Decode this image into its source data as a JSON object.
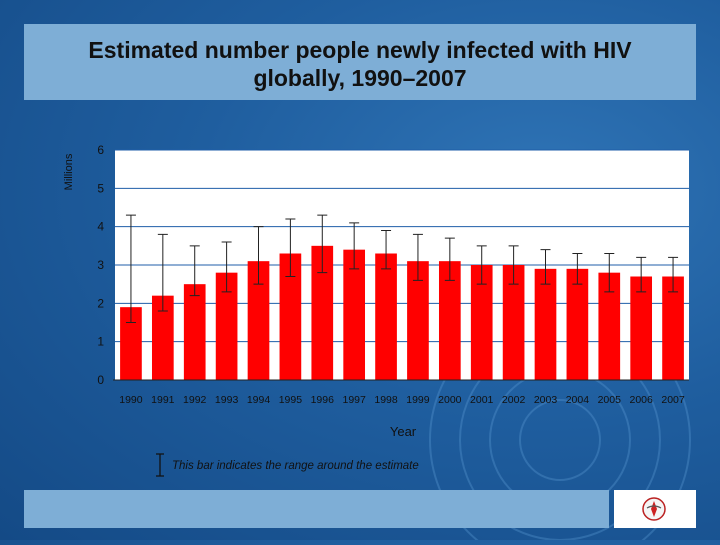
{
  "chart_data": {
    "type": "bar",
    "title": "Estimated number people newly infected with HIV globally, 1990–2007",
    "title_lines": [
      "Estimated number people newly infected with HIV",
      "globally, 1990–2007"
    ],
    "xlabel": "Year",
    "ylabel": "Millions",
    "ylim": [
      0,
      6
    ],
    "yticks": [
      "0",
      "1",
      "2",
      "3",
      "4",
      "5",
      "6"
    ],
    "grid": true,
    "categories": [
      "1990",
      "1991",
      "1992",
      "1993",
      "1994",
      "1995",
      "1996",
      "1997",
      "1998",
      "1999",
      "2000",
      "2001",
      "2002",
      "2003",
      "2004",
      "2005",
      "2006",
      "2007"
    ],
    "values": [
      1.9,
      2.2,
      2.5,
      2.8,
      3.1,
      3.3,
      3.5,
      3.4,
      3.3,
      3.1,
      3.1,
      3.0,
      3.0,
      2.9,
      2.9,
      2.8,
      2.7,
      2.7
    ],
    "range_low": [
      1.5,
      1.8,
      2.2,
      2.3,
      2.5,
      2.7,
      2.8,
      2.9,
      2.9,
      2.6,
      2.6,
      2.5,
      2.5,
      2.5,
      2.5,
      2.3,
      2.3,
      2.3
    ],
    "range_high": [
      4.3,
      3.8,
      3.5,
      3.6,
      4.0,
      4.2,
      4.3,
      4.1,
      3.9,
      3.8,
      3.7,
      3.5,
      3.5,
      3.4,
      3.3,
      3.3,
      3.2,
      3.2
    ],
    "bar_color": "#ff0000",
    "legend_text": "This bar indicates the range around the estimate"
  }
}
